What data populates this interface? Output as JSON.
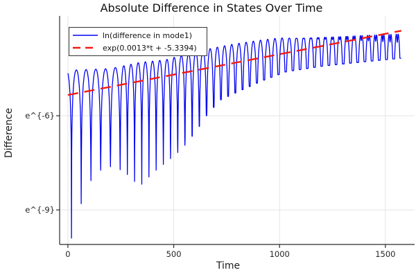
{
  "chart_data": {
    "type": "line",
    "title": "Absolute Difference in States Over Time",
    "xlabel": "Time",
    "ylabel": "Difference",
    "grid": true,
    "legend_position": "top-left",
    "xlim": [
      -39,
      1638
    ],
    "ylim_ln": [
      -10.1,
      -2.82
    ],
    "x_ticks": [
      {
        "value": 0,
        "label": "0"
      },
      {
        "value": 500,
        "label": "500"
      },
      {
        "value": 1000,
        "label": "1000"
      },
      {
        "value": 1500,
        "label": "1500"
      }
    ],
    "y_ticks": [
      {
        "ln": -6,
        "label": "e^{-6}"
      },
      {
        "ln": -9,
        "label": "e^{-9}"
      }
    ],
    "colors": {
      "grid": "#e4e4e4",
      "axis": "#2b2b2b",
      "tick_text": "#262626"
    },
    "series": [
      {
        "name": "ln(difference in mode1)",
        "color": "#0000f2",
        "style": "solid",
        "model": {
          "kind": "log-abs-oscillation",
          "t_start": 0,
          "t_end": 1575,
          "first_dip_t": 17,
          "period_initial": 46,
          "period_final": 34,
          "transition_t": 220,
          "peak_env_ln": [
            [
              0,
              -4.55
            ],
            [
              200,
              -4.5
            ],
            [
              340,
              -4.3
            ],
            [
              460,
              -4.22
            ],
            [
              580,
              -4.0
            ],
            [
              680,
              -3.85
            ],
            [
              780,
              -3.72
            ],
            [
              900,
              -3.6
            ],
            [
              1000,
              -3.52
            ],
            [
              1200,
              -3.42
            ],
            [
              1400,
              -3.33
            ],
            [
              1600,
              -3.26
            ]
          ],
          "valley_env_ln": [
            [
              17,
              -9.9
            ],
            [
              63,
              -8.8
            ],
            [
              110,
              -8.05
            ],
            [
              160,
              -7.7
            ],
            [
              215,
              -7.6
            ],
            [
              270,
              -7.8
            ],
            [
              339,
              -8.25
            ],
            [
              405,
              -7.8
            ],
            [
              470,
              -7.45
            ],
            [
              540,
              -7.05
            ],
            [
              600,
              -6.55
            ],
            [
              660,
              -5.95
            ],
            [
              720,
              -5.5
            ],
            [
              815,
              -5.2
            ],
            [
              920,
              -4.88
            ],
            [
              1030,
              -4.6
            ],
            [
              1200,
              -4.42
            ],
            [
              1400,
              -4.28
            ],
            [
              1600,
              -4.15
            ]
          ],
          "notch": {
            "start_t": 1000,
            "max_depth": 0.4,
            "sigma": 0.06
          }
        }
      },
      {
        "name": "exp(0.0013*t + -5.3394)",
        "color": "#f31b12",
        "style": "dashed",
        "model": {
          "kind": "linear-ln",
          "slope": 0.0013,
          "intercept": -5.3394,
          "t_start": 0,
          "t_end": 1575
        }
      }
    ]
  }
}
